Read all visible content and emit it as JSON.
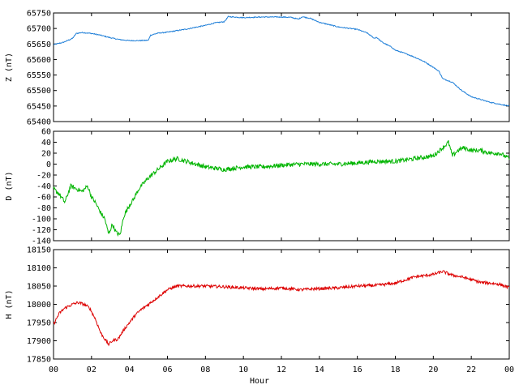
{
  "xlabel": "Hour",
  "x_tick_labels": [
    "00",
    "02",
    "04",
    "06",
    "08",
    "10",
    "12",
    "14",
    "16",
    "18",
    "20",
    "22",
    "00"
  ],
  "chart_data": [
    {
      "type": "line",
      "ylabel": "Z (nT)",
      "ylim": [
        65400,
        65750
      ],
      "yticks": [
        65400,
        65450,
        65500,
        65550,
        65600,
        65650,
        65700,
        65750
      ],
      "xlim": [
        0,
        24
      ],
      "grid": false,
      "color": "#1f7fd8",
      "noise": 1.5,
      "series": [
        {
          "x": [
            0,
            0.5,
            1,
            1.2,
            1.5,
            2,
            2.5,
            3,
            3.5,
            4,
            4.5,
            5,
            5.1,
            5.5,
            6,
            7,
            8,
            8.5,
            9,
            9.2,
            9.5,
            10,
            11,
            12,
            12.5,
            12.9,
            13.1,
            13.5,
            14,
            15,
            16,
            16.5,
            16.9,
            17,
            17.3,
            17.8,
            18,
            18.5,
            19,
            19.5,
            20,
            20.3,
            20.5,
            21,
            21.5,
            22,
            23,
            24
          ],
          "y": [
            65648,
            65655,
            65668,
            65684,
            65687,
            65684,
            65678,
            65670,
            65664,
            65661,
            65661,
            65662,
            65678,
            65685,
            65688,
            65698,
            65710,
            65718,
            65722,
            65738,
            65737,
            65735,
            65737,
            65737,
            65736,
            65730,
            65738,
            65733,
            65720,
            65705,
            65697,
            65686,
            65668,
            65672,
            65656,
            65640,
            65630,
            65620,
            65608,
            65594,
            65575,
            65562,
            65538,
            65527,
            65500,
            65480,
            65462,
            65450
          ]
        }
      ]
    },
    {
      "type": "line",
      "ylabel": "D (nT)",
      "ylim": [
        -140,
        60
      ],
      "yticks": [
        -140,
        -120,
        -100,
        -80,
        -60,
        -40,
        -20,
        0,
        20,
        40,
        60
      ],
      "xlim": [
        0,
        24
      ],
      "grid": false,
      "color": "#00b400",
      "noise": 4,
      "series": [
        {
          "x": [
            0,
            0.3,
            0.6,
            0.9,
            1.2,
            1.5,
            1.8,
            2,
            2.2,
            2.5,
            2.7,
            2.9,
            3.1,
            3.3,
            3.5,
            3.7,
            4,
            4.2,
            4.5,
            5,
            5.5,
            6,
            6.5,
            7,
            7.5,
            8,
            9,
            10,
            11,
            12,
            13,
            14,
            15,
            16,
            17,
            18,
            19,
            20,
            20.5,
            20.8,
            21,
            21.3,
            21.6,
            22,
            22.5,
            23,
            23.5,
            24
          ],
          "y": [
            -45,
            -55,
            -70,
            -40,
            -45,
            -50,
            -40,
            -60,
            -70,
            -90,
            -100,
            -128,
            -110,
            -125,
            -130,
            -95,
            -75,
            -65,
            -45,
            -25,
            -10,
            5,
            10,
            5,
            0,
            -5,
            -10,
            -5,
            -5,
            -2,
            0,
            0,
            0,
            2,
            5,
            5,
            10,
            15,
            30,
            40,
            15,
            25,
            30,
            25,
            25,
            20,
            20,
            10
          ]
        }
      ]
    },
    {
      "type": "line",
      "ylabel": "H (nT)",
      "ylim": [
        17850,
        18150
      ],
      "yticks": [
        17850,
        17900,
        17950,
        18000,
        18050,
        18100,
        18150
      ],
      "xlim": [
        0,
        24
      ],
      "grid": false,
      "color": "#dd0000",
      "noise": 4,
      "series": [
        {
          "x": [
            0,
            0.3,
            0.6,
            1,
            1.3,
            1.6,
            1.9,
            2.2,
            2.5,
            2.7,
            2.9,
            3.1,
            3.4,
            3.7,
            4,
            4.3,
            4.6,
            5,
            5.5,
            6,
            6.5,
            7,
            8,
            9,
            10,
            11,
            12,
            13,
            14,
            15,
            16,
            17,
            18,
            19,
            20,
            20.5,
            21,
            21.5,
            22,
            22.5,
            23,
            23.5,
            24
          ],
          "y": [
            17945,
            17975,
            17990,
            18000,
            18005,
            18000,
            17990,
            17960,
            17920,
            17905,
            17890,
            17900,
            17905,
            17930,
            17950,
            17970,
            17985,
            18000,
            18020,
            18040,
            18050,
            18050,
            18050,
            18048,
            18045,
            18042,
            18045,
            18040,
            18043,
            18045,
            18050,
            18052,
            18058,
            18075,
            18082,
            18090,
            18080,
            18075,
            18068,
            18060,
            18058,
            18055,
            18045
          ]
        }
      ]
    }
  ]
}
